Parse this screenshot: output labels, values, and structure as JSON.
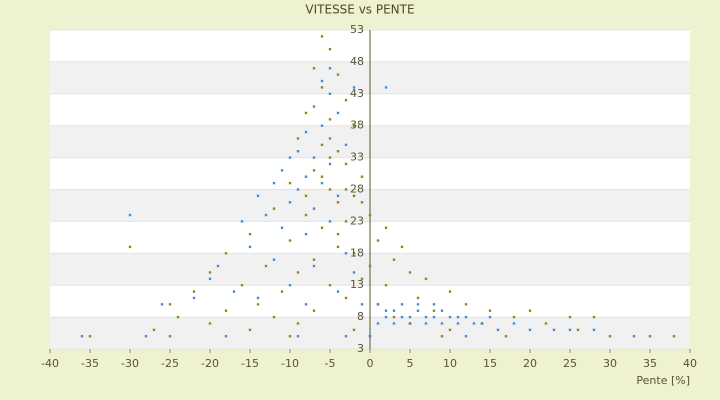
{
  "chart_data": {
    "type": "scatter",
    "title": "VITESSE vs PENTE",
    "x_label": "Pente [%]",
    "xlim": [
      -40,
      40
    ],
    "xticks": [
      -40,
      -35,
      -30,
      -25,
      -20,
      -15,
      -10,
      -5,
      0,
      5,
      10,
      15,
      20,
      25,
      30,
      35,
      40
    ],
    "ylim": [
      3,
      53
    ],
    "yticks": [
      3,
      8,
      13,
      18,
      23,
      28,
      33,
      38,
      43,
      48,
      53
    ],
    "grid": true,
    "series": [
      {
        "color": "#8c8c14",
        "x": [
          -6,
          -5,
          -7,
          -4,
          -6,
          -3,
          -8,
          -5,
          -2,
          -9,
          -6,
          -4,
          -3,
          -7,
          -1,
          -10,
          -5,
          -2,
          -4,
          -12,
          -8,
          0,
          -3,
          2,
          -6,
          -15,
          1,
          -10,
          -4,
          4,
          -18,
          -2,
          3,
          -7,
          -13,
          0,
          5,
          -20,
          -9,
          -1,
          7,
          -16,
          -5,
          2,
          10,
          -22,
          -11,
          -3,
          6,
          -25,
          -14,
          1,
          12,
          -30,
          -18,
          -7,
          8,
          15,
          20,
          -24,
          -12,
          3,
          18,
          25,
          28,
          -20,
          -9,
          5,
          14,
          22,
          -27,
          -15,
          -2,
          10,
          26,
          -35,
          -25,
          -10,
          0,
          9,
          17,
          30,
          35,
          38,
          -5,
          -6,
          -3,
          -1,
          -4,
          -8
        ],
        "values": [
          52,
          50,
          47,
          46,
          44,
          42,
          40,
          39,
          38,
          36,
          35,
          34,
          32,
          31,
          30,
          29,
          28,
          27,
          26,
          25,
          24,
          24,
          23,
          22,
          22,
          21,
          20,
          20,
          19,
          19,
          18,
          18,
          17,
          17,
          16,
          16,
          15,
          15,
          15,
          14,
          14,
          13,
          13,
          13,
          12,
          12,
          12,
          11,
          11,
          10,
          10,
          10,
          10,
          19,
          9,
          9,
          9,
          9,
          9,
          8,
          8,
          8,
          8,
          8,
          8,
          7,
          7,
          7,
          7,
          7,
          6,
          6,
          6,
          6,
          6,
          5,
          5,
          5,
          5,
          5,
          5,
          5,
          5,
          5,
          33,
          30,
          28,
          26,
          21,
          27
        ]
      },
      {
        "color": "#3c8ed8",
        "x": [
          -6,
          -5,
          -7,
          -4,
          -6,
          -8,
          -5,
          -3,
          -9,
          -10,
          -7,
          -5,
          -11,
          -8,
          -6,
          -12,
          -9,
          -4,
          -14,
          -10,
          -7,
          -13,
          -16,
          -5,
          -11,
          -8,
          -15,
          -3,
          -12,
          -19,
          -7,
          -2,
          -30,
          -20,
          -10,
          -17,
          -4,
          -22,
          -14,
          -8,
          -26,
          -1,
          1,
          2,
          3,
          4,
          5,
          6,
          7,
          8,
          9,
          10,
          11,
          12,
          1,
          3,
          5,
          7,
          9,
          11,
          13,
          15,
          2,
          4,
          6,
          8,
          14,
          16,
          18,
          20,
          23,
          25,
          28,
          -18,
          -9,
          -3,
          0,
          12,
          -28,
          -36,
          33,
          2,
          -2,
          -5
        ],
        "values": [
          45,
          43,
          41,
          40,
          38,
          37,
          36,
          35,
          34,
          33,
          33,
          32,
          31,
          30,
          29,
          29,
          28,
          27,
          27,
          26,
          25,
          24,
          23,
          23,
          22,
          21,
          19,
          18,
          17,
          16,
          16,
          15,
          24,
          14,
          13,
          12,
          12,
          11,
          11,
          10,
          10,
          10,
          10,
          9,
          9,
          8,
          8,
          9,
          8,
          8,
          9,
          8,
          8,
          8,
          7,
          7,
          7,
          7,
          7,
          7,
          7,
          8,
          8,
          10,
          10,
          10,
          7,
          6,
          7,
          6,
          6,
          6,
          6,
          5,
          5,
          5,
          5,
          5,
          5,
          5,
          5,
          44,
          44,
          47
        ]
      }
    ]
  }
}
